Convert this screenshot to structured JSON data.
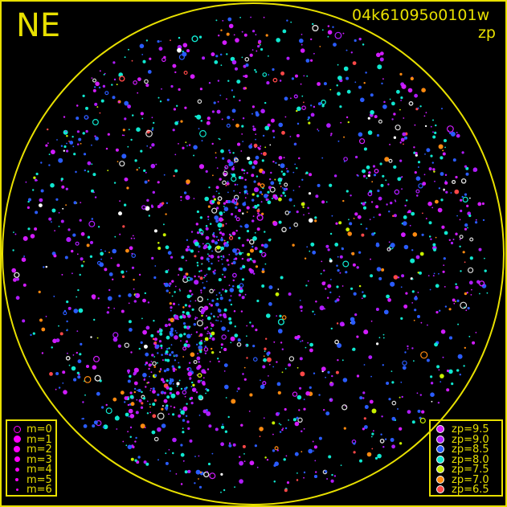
{
  "direction_label": "NE",
  "frame_id": "04k61095o0101w",
  "quantity_label": "zp",
  "chart_data": {
    "type": "scatter",
    "projection": "all-sky fisheye",
    "boundary_color": "#e8e000",
    "grid": false,
    "magnitude_legend": {
      "placement": "bottom-left",
      "entries": [
        {
          "label": "m=0",
          "symbol": "open-circle"
        },
        {
          "label": "m=1",
          "symbol": "filled-circle"
        },
        {
          "label": "m=2",
          "symbol": "filled-circle"
        },
        {
          "label": "m=3",
          "symbol": "filled-circle"
        },
        {
          "label": "m=4",
          "symbol": "filled-circle"
        },
        {
          "label": "m=5",
          "symbol": "filled-circle"
        },
        {
          "label": "m=6",
          "symbol": "filled-circle"
        }
      ]
    },
    "zp_legend": {
      "placement": "bottom-right",
      "entries": [
        {
          "label": "zp=9.5",
          "value": 9.5,
          "color": "#d21cff"
        },
        {
          "label": "zp=9.0",
          "value": 9.0,
          "color": "#b01cff"
        },
        {
          "label": "zp=8.5",
          "value": 8.5,
          "color": "#2a5cff"
        },
        {
          "label": "zp=8.0",
          "value": 8.0,
          "color": "#10e8d0"
        },
        {
          "label": "zp=7.5",
          "value": 7.5,
          "color": "#c8f000"
        },
        {
          "label": "zp=7.0",
          "value": 7.0,
          "color": "#ff8a10"
        },
        {
          "label": "zp=6.5",
          "value": 6.5,
          "color": "#ff4848"
        }
      ]
    }
  }
}
